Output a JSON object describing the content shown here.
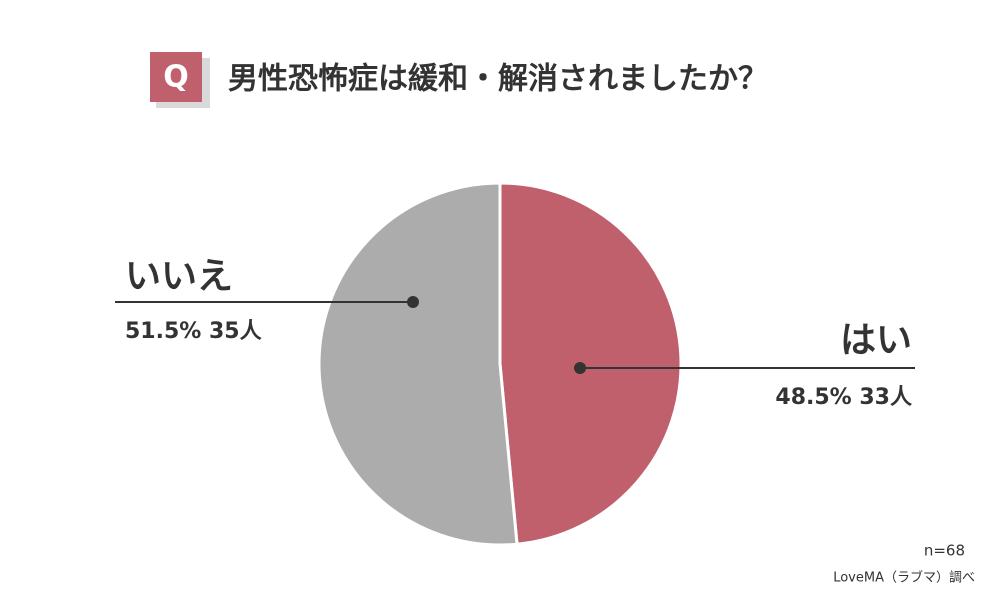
{
  "chart_data": {
    "type": "pie",
    "badge": "Q",
    "title": "男性恐怖症は緩和・解消されましたか？",
    "categories": [
      "はい",
      "いいえ"
    ],
    "values": [
      48.5,
      51.5
    ],
    "value_labels": [
      "48.5% 33人",
      "51.5% 35人"
    ],
    "colors": [
      "#c0606c",
      "#acacac"
    ],
    "note": "n=68",
    "source": "LoveMA（ラブマ）調べ"
  }
}
